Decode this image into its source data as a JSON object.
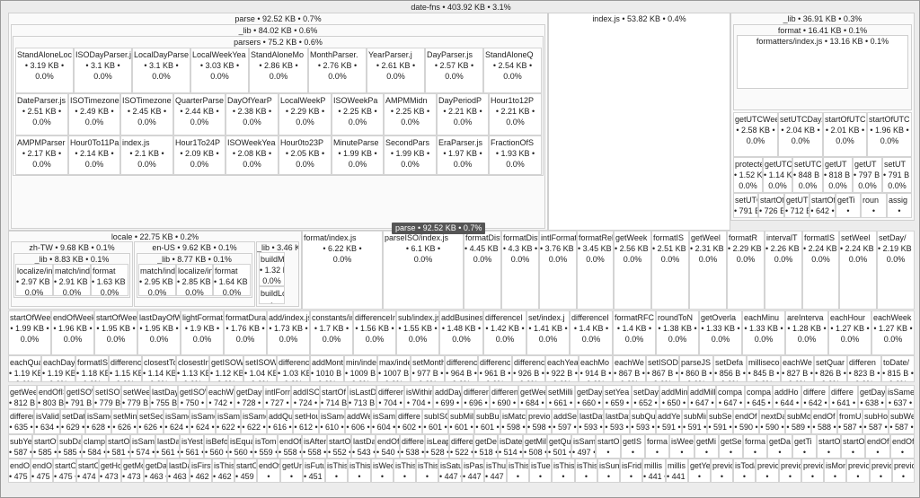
{
  "root": {
    "label": "date-fns • 403.92 KB • 3.1%"
  },
  "tooltip": "parse • 92.52 KB • 0.7%",
  "parse": {
    "label": "parse • 92.52 KB • 0.7%",
    "lib": "_lib • 84.02 KB • 0.6%",
    "parsers": "parsers • 75.2 KB • 0.6%",
    "rows": [
      [
        [
          "StandAloneLoc",
          "3.19 KB",
          "0.0%"
        ],
        [
          "ISODayParser.j",
          "3.1 KB",
          "0.0%"
        ],
        [
          "LocalDayParse",
          "3.1 KB",
          "0.0%"
        ],
        [
          "LocalWeekYea",
          "3.03 KB",
          "0.0%"
        ],
        [
          "StandAloneMo",
          "2.86 KB",
          "0.0%"
        ],
        [
          "MonthParser.",
          "2.76 KB",
          "0.0%"
        ],
        [
          "YearParser.j",
          "2.61 KB",
          "0.0%"
        ],
        [
          "DayParser.js",
          "2.57 KB",
          "0.0%"
        ],
        [
          "StandAloneQ",
          "2.54 KB",
          "0.0%"
        ]
      ],
      [
        [
          "DateParser.js",
          "2.51 KB",
          "0.0%"
        ],
        [
          "ISOTimezone",
          "2.49 KB",
          "0.0%"
        ],
        [
          "ISOTimezone",
          "2.45 KB",
          "0.0%"
        ],
        [
          "QuarterParse",
          "2.44 KB",
          "0.0%"
        ],
        [
          "DayOfYearP",
          "2.38 KB",
          "0.0%"
        ],
        [
          "LocalWeekP",
          "2.29 KB",
          "0.0%"
        ],
        [
          "ISOWeekPa",
          "2.25 KB",
          "0.0%"
        ],
        [
          "AMPMMidn",
          "2.25 KB",
          "0.0%"
        ],
        [
          "DayPeriodP",
          "2.21 KB",
          "0.0%"
        ],
        [
          "Hour1to12P",
          "2.21 KB",
          "0.0%"
        ]
      ],
      [
        [
          "AMPMParser",
          "2.17 KB",
          "0.0%"
        ],
        [
          "Hour0To11Pa",
          "2.14 KB",
          "0.0%"
        ],
        [
          "index.js",
          "2.1 KB",
          "0.0%"
        ],
        [
          "Hour1To24P",
          "2.09 KB",
          "0.0%"
        ],
        [
          "ISOWeekYea",
          "2.08 KB",
          "0.0%"
        ],
        [
          "Hour0to23P",
          "2.05 KB",
          "0.0%"
        ],
        [
          "MinuteParse",
          "1.99 KB",
          "0.0%"
        ],
        [
          "SecondPars",
          "1.99 KB",
          "0.0%"
        ],
        [
          "EraParser.js",
          "1.97 KB",
          "0.0%"
        ],
        [
          "FractionOfS",
          "1.93 KB",
          "0.0%"
        ]
      ]
    ]
  },
  "index": {
    "label": "index.js • 53.82 KB • 0.4%"
  },
  "rlib": {
    "label": "_lib • 36.91 KB • 0.3%",
    "format": "format • 16.41 KB • 0.1%",
    "formatters": "formatters/index.js • 13.16 KB • 0.1%",
    "rows": [
      [
        [
          "getUTCWeekYe",
          "2.58 KB",
          "0.0%"
        ],
        [
          "setUTCDay.",
          "2.04 KB",
          "0.0%"
        ],
        [
          "startOfUTC",
          "2.01 KB",
          "0.0%"
        ],
        [
          "startOfUTC",
          "1.96 KB",
          "0.0%"
        ]
      ],
      [
        [
          "protectedTol",
          "1.52 KB",
          "0.0%"
        ],
        [
          "getUTCIS",
          "1.14 KB",
          "0.0%"
        ],
        [
          "setUTC",
          "848 B",
          "0.0%"
        ],
        [
          "getUT",
          "818 B",
          "0.0%"
        ],
        [
          "getUT",
          "797 B",
          "0.0%"
        ],
        [
          "setUT",
          "791 B",
          "0.0%"
        ]
      ],
      [
        [
          "setUTCIS",
          "791 B",
          "0.0%"
        ],
        [
          "startOfL",
          "726 B",
          "0.0%"
        ],
        [
          "getUTCI",
          "712 B",
          "0.0%"
        ],
        [
          "startOf",
          "642",
          "0.0%"
        ],
        [
          "getTi",
          "",
          ""
        ],
        [
          "roun",
          "",
          ""
        ],
        [
          "assig",
          "",
          ""
        ]
      ]
    ]
  },
  "locale": {
    "label": "locale • 22.75 KB • 0.2%",
    "zh": {
      "label": "zh-TW • 9.68 KB • 0.1%",
      "lib": "_lib • 8.83 KB • 0.1%",
      "cells": [
        [
          "localize/inde",
          "2.97 KB",
          "0.0%"
        ],
        [
          "match/index",
          "2.91 KB",
          "0.0%"
        ],
        [
          "format",
          "1.63 KB",
          "0.0%"
        ]
      ]
    },
    "en": {
      "label": "en-US • 9.62 KB • 0.1%",
      "lib": "_lib • 8.77 KB • 0.1%",
      "cells": [
        [
          "match/index",
          "2.95 KB",
          "0.0%"
        ],
        [
          "localize/ind",
          "2.85 KB",
          "0.0%"
        ],
        [
          "format",
          "1.64 KB",
          "0.0%"
        ]
      ]
    },
    "lib": {
      "label": "_lib • 3.46 KB • 0.0%",
      "cells": [
        [
          "buildM",
          "1.32 KB",
          "0.0%"
        ],
        [
          "buildLc",
          "",
          ""
        ]
      ]
    }
  },
  "mid": [
    [
      "format/index.js",
      "6.22 KB",
      "0.0%"
    ],
    [
      "parseISO/index.js",
      "6.1 KB",
      "0.0%"
    ],
    [
      "formatDistance/",
      "4.45 KB",
      "0.0%"
    ],
    [
      "formatDistance",
      "4.3 KB",
      "0.0%"
    ],
    [
      "intlFormatDist",
      "3.76 KB",
      "0.0%"
    ],
    [
      "formatRelati",
      "3.45 KB",
      "0.0%"
    ],
    [
      "getWeek",
      "2.56 KB",
      "0.0%"
    ],
    [
      "formatIS",
      "2.51 KB",
      "0.0%"
    ],
    [
      "getWeel",
      "2.31 KB",
      "0.0%"
    ],
    [
      "formatR",
      "2.29 KB",
      "0.0%"
    ],
    [
      "intervalT",
      "2.26 KB",
      "0.0%"
    ],
    [
      "formatIS",
      "2.24 KB",
      "0.0%"
    ],
    [
      "setWeel",
      "2.24 KB",
      "0.0%"
    ],
    [
      "setDay/",
      "2.19 KB",
      "0.0%"
    ]
  ],
  "rows": [
    [
      [
        "startOfWeekYe",
        "1.99 KB",
        "0.0%"
      ],
      [
        "endOfWeek/in",
        "1.96 KB",
        "0.0%"
      ],
      [
        "startOfWeek/ir",
        "1.95 KB",
        "0.0%"
      ],
      [
        "lastDayOfWeek",
        "1.95 KB",
        "0.0%"
      ],
      [
        "lightFormat/in",
        "1.9 KB",
        "0.0%"
      ],
      [
        "formatDuratic",
        "1.76 KB",
        "0.0%"
      ],
      [
        "add/index.js",
        "1.73 KB",
        "0.0%"
      ],
      [
        "constants/in",
        "1.7 KB",
        "0.0%"
      ],
      [
        "differenceIn",
        "1.56 KB",
        "0.0%"
      ],
      [
        "sub/index.js",
        "1.55 KB",
        "0.0%"
      ],
      [
        "addBusines",
        "1.48 KB",
        "0.0%"
      ],
      [
        "differenceI",
        "1.42 KB",
        "0.0%"
      ],
      [
        "set/index.j",
        "1.41 KB",
        "0.0%"
      ],
      [
        "differenceI",
        "1.4 KB",
        "0.0%"
      ],
      [
        "formatRFC",
        "1.4 KB",
        "0.0%"
      ],
      [
        "roundToN",
        "1.38 KB",
        "0.0%"
      ],
      [
        "getOverla",
        "1.33 KB",
        "0.0%"
      ],
      [
        "eachMinu",
        "1.33 KB",
        "0.0%"
      ],
      [
        "areInterva",
        "1.28 KB",
        "0.0%"
      ],
      [
        "eachHour",
        "1.27 KB",
        "0.0%"
      ],
      [
        "eachWeek",
        "1.27 KB",
        "0.0%"
      ]
    ],
    [
      [
        "eachQuarte",
        "1.19 KB",
        "0.0%"
      ],
      [
        "eachDayOf",
        "1.19 KB",
        "0.0%"
      ],
      [
        "formatISOD",
        "1.18 KB",
        "0.0%"
      ],
      [
        "differenceI",
        "1.15 KB",
        "0.0%"
      ],
      [
        "closestTo/",
        "1.14 KB",
        "0.0%"
      ],
      [
        "closestInde",
        "1.13 KB",
        "0.0%"
      ],
      [
        "getISOWee",
        "1.12 KB",
        "0.0%"
      ],
      [
        "setISOWe",
        "1.04 KB",
        "0.0%"
      ],
      [
        "difference",
        "1.03 KB",
        "0.0%"
      ],
      [
        "addMont",
        "1010 B",
        "0.0%"
      ],
      [
        "min/inde",
        "1009 B",
        "0.0%"
      ],
      [
        "max/inde",
        "1007 B",
        "0.0%"
      ],
      [
        "setMonth",
        "977 B",
        "0.0%"
      ],
      [
        "differenc",
        "964 B",
        "0.0%"
      ],
      [
        "differenc",
        "961 B",
        "0.0%"
      ],
      [
        "differenc",
        "926 B",
        "0.0%"
      ],
      [
        "eachYea",
        "922 B",
        "0.0%"
      ],
      [
        "eachMo",
        "914 B",
        "0.0%"
      ],
      [
        "eachWe",
        "867 B",
        "0.0%"
      ],
      [
        "setISOD",
        "867 B",
        "0.0%"
      ],
      [
        "parseJS",
        "860 B",
        "0.0%"
      ],
      [
        "setDefa",
        "856 B",
        "0.0%"
      ],
      [
        "milliseco",
        "845 B",
        "0.0%"
      ],
      [
        "eachWe",
        "827 B",
        "0.0%"
      ],
      [
        "setQuar",
        "826 B",
        "0.0%"
      ],
      [
        "differen",
        "823 B",
        "0.0%"
      ],
      [
        "toDate/",
        "815 B",
        "0.0%"
      ]
    ],
    [
      [
        "getWeek",
        "812 B",
        ""
      ],
      [
        "endOfISO",
        "803 B",
        ""
      ],
      [
        "getISOW",
        "791 B",
        ""
      ],
      [
        "setISOW",
        "779 B",
        ""
      ],
      [
        "setWeek",
        "779 B",
        ""
      ],
      [
        "lastDay",
        "755 B",
        ""
      ],
      [
        "getISOW",
        "750",
        ""
      ],
      [
        "eachWe",
        "742",
        ""
      ],
      [
        "getDay",
        "728",
        ""
      ],
      [
        "intlForm",
        "727",
        ""
      ],
      [
        "addISO",
        "724",
        ""
      ],
      [
        "startOf",
        "714 B",
        ""
      ],
      [
        "isLastD",
        "713 B",
        ""
      ],
      [
        "differen",
        "704",
        ""
      ],
      [
        "isWithin",
        "704",
        ""
      ],
      [
        "addDay",
        "699",
        ""
      ],
      [
        "differen",
        "696",
        ""
      ],
      [
        "differen",
        "690",
        ""
      ],
      [
        "getWee",
        "684",
        ""
      ],
      [
        "setMilli",
        "661",
        ""
      ],
      [
        "getDay",
        "660",
        ""
      ],
      [
        "setYea",
        "659",
        ""
      ],
      [
        "setDay",
        "652",
        ""
      ],
      [
        "addMin",
        "650",
        ""
      ],
      [
        "addMill",
        "647",
        ""
      ],
      [
        "compa",
        "647",
        ""
      ],
      [
        "compa",
        "645",
        ""
      ],
      [
        "addHo",
        "644",
        ""
      ],
      [
        "differe",
        "642",
        ""
      ],
      [
        "differe",
        "641",
        ""
      ],
      [
        "getDay",
        "638",
        ""
      ],
      [
        "isSame",
        "637",
        ""
      ]
    ],
    [
      [
        "differer",
        "635",
        ""
      ],
      [
        "isValid/",
        "634",
        ""
      ],
      [
        "setDate",
        "629",
        ""
      ],
      [
        "isSame",
        "628",
        ""
      ],
      [
        "setMin",
        "626",
        ""
      ],
      [
        "setSec",
        "626",
        ""
      ],
      [
        "isSame",
        "624",
        ""
      ],
      [
        "isSame",
        "624",
        ""
      ],
      [
        "isSame",
        "622",
        ""
      ],
      [
        "isSame",
        "622",
        ""
      ],
      [
        "addQu",
        "616",
        ""
      ],
      [
        "setHou",
        "612",
        ""
      ],
      [
        "isSame",
        "610",
        ""
      ],
      [
        "addWe",
        "606",
        ""
      ],
      [
        "isSame",
        "604",
        ""
      ],
      [
        "differe",
        "602",
        ""
      ],
      [
        "subISO",
        "601",
        ""
      ],
      [
        "subMill",
        "601",
        ""
      ],
      [
        "subBus",
        "601",
        ""
      ],
      [
        "isMatc",
        "598",
        ""
      ],
      [
        "previou",
        "598",
        ""
      ],
      [
        "addSec",
        "597",
        ""
      ],
      [
        "lastDay",
        "593",
        ""
      ],
      [
        "lastDay",
        "593",
        ""
      ],
      [
        "subQu",
        "593",
        ""
      ],
      [
        "addYe",
        "591",
        ""
      ],
      [
        "subMin",
        "591",
        ""
      ],
      [
        "subSec",
        "591",
        ""
      ],
      [
        "endOf",
        "590",
        ""
      ],
      [
        "nextDa",
        "590",
        ""
      ],
      [
        "subMo",
        "589",
        ""
      ],
      [
        "endOf",
        "588",
        ""
      ],
      [
        "fromU",
        "587",
        ""
      ],
      [
        "subHo",
        "587",
        ""
      ],
      [
        "subWe",
        "587",
        ""
      ]
    ],
    [
      [
        "subYea",
        "587",
        ""
      ],
      [
        "startOf",
        "585",
        ""
      ],
      [
        "subDay",
        "585",
        ""
      ],
      [
        "clamp/",
        "584",
        ""
      ],
      [
        "startOf",
        "581",
        ""
      ],
      [
        "isSame",
        "574",
        ""
      ],
      [
        "lastDay",
        "561",
        ""
      ],
      [
        "isYeste",
        "561",
        ""
      ],
      [
        "isBefor",
        "560",
        ""
      ],
      [
        "isEqua",
        "560",
        ""
      ],
      [
        "isTomo",
        "559",
        ""
      ],
      [
        "endOf",
        "558",
        ""
      ],
      [
        "isAfter",
        "558",
        ""
      ],
      [
        "startOf",
        "552",
        ""
      ],
      [
        "lastDa",
        "543",
        ""
      ],
      [
        "endOf",
        "540",
        ""
      ],
      [
        "differe",
        "538",
        ""
      ],
      [
        "isLeap",
        "528",
        ""
      ],
      [
        "differe",
        "522",
        ""
      ],
      [
        "getDe",
        "518",
        ""
      ],
      [
        "isDate",
        "514",
        ""
      ],
      [
        "getMil",
        "508",
        ""
      ],
      [
        "getQu",
        "501",
        ""
      ],
      [
        "isSam",
        "497",
        ""
      ],
      [
        "startO",
        "",
        ""
      ],
      [
        "getIS",
        "",
        ""
      ],
      [
        "forma",
        "",
        ""
      ],
      [
        "isWee",
        "",
        ""
      ],
      [
        "getMi",
        "",
        ""
      ],
      [
        "getSe",
        "",
        ""
      ],
      [
        "forma",
        "",
        ""
      ],
      [
        "getDa",
        "",
        ""
      ],
      [
        "getTi",
        "",
        ""
      ],
      [
        "startO",
        "",
        ""
      ],
      [
        "startO",
        "",
        ""
      ],
      [
        "endOf",
        "",
        ""
      ],
      [
        "endOf",
        "",
        ""
      ]
    ],
    [
      [
        "endOf",
        "475",
        ""
      ],
      [
        "endOf",
        "475",
        ""
      ],
      [
        "startO",
        "475",
        ""
      ],
      [
        "startO",
        "474",
        ""
      ],
      [
        "getHo",
        "473",
        ""
      ],
      [
        "getMo",
        "473",
        ""
      ],
      [
        "getDa",
        "463",
        ""
      ],
      [
        "lastDa",
        "463",
        ""
      ],
      [
        "isFirst",
        "462",
        ""
      ],
      [
        "isThis",
        "462",
        ""
      ],
      [
        "startO",
        "459",
        ""
      ],
      [
        "endOf",
        "",
        ""
      ],
      [
        "getUn",
        "",
        ""
      ],
      [
        "isFutu",
        "451",
        ""
      ],
      [
        "isThis",
        "",
        ""
      ],
      [
        "isThis",
        "",
        ""
      ],
      [
        "isWed",
        "",
        ""
      ],
      [
        "isThis",
        "",
        ""
      ],
      [
        "isThis",
        "",
        ""
      ],
      [
        "isSatu",
        "447",
        ""
      ],
      [
        "isPast",
        "447",
        ""
      ],
      [
        "isThur",
        "447",
        ""
      ],
      [
        "isThis",
        "",
        ""
      ],
      [
        "isTues",
        "",
        ""
      ],
      [
        "isThis",
        "",
        ""
      ],
      [
        "isThis",
        "",
        ""
      ],
      [
        "isSun",
        "",
        ""
      ],
      [
        "isFrid",
        "",
        ""
      ],
      [
        "millis",
        "441",
        ""
      ],
      [
        "millis",
        "441",
        ""
      ],
      [
        "getYe",
        "",
        ""
      ],
      [
        "previo",
        "",
        ""
      ],
      [
        "isToda",
        "",
        ""
      ],
      [
        "previo",
        "",
        ""
      ],
      [
        "previo",
        "",
        ""
      ],
      [
        "previo",
        "",
        ""
      ],
      [
        "isMon",
        "",
        ""
      ],
      [
        "previo",
        "",
        ""
      ],
      [
        "previo",
        "",
        ""
      ],
      [
        "previo",
        "",
        ""
      ]
    ]
  ]
}
